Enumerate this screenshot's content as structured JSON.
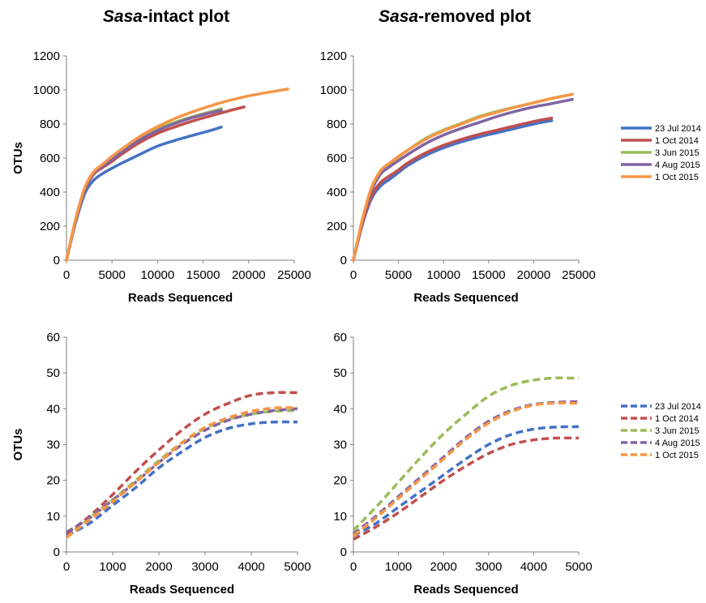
{
  "titles": {
    "left": {
      "italic": "Sasa",
      "rest": "-intact plot"
    },
    "right": {
      "italic": "Sasa",
      "rest": "-removed plot"
    }
  },
  "colors": {
    "23 Jul 2014": "#4472c4",
    "1 Oct 2014": "#c0504d",
    "3 Jun 2015": "#9bbb59",
    "4 Aug 2015": "#8064a2",
    "1 Oct 2015": "#f79646"
  },
  "chart_data": [
    {
      "id": "top-left",
      "type": "line",
      "line_style": "solid",
      "xlabel": "Reads Sequenced",
      "ylabel": "OTUs",
      "xlim": [
        0,
        25000
      ],
      "ylim": [
        0,
        1200
      ],
      "x_ticks": [
        "0",
        "5000",
        "10000",
        "15000",
        "20000",
        "25000"
      ],
      "y_ticks": [
        "0",
        "200",
        "400",
        "600",
        "800",
        "1000",
        "1200"
      ],
      "series": [
        {
          "name": "23 Jul 2014",
          "x": [
            0,
            1000,
            2000,
            3000,
            4000,
            5000,
            6000,
            8000,
            10000,
            12000,
            14000,
            16000,
            17000
          ],
          "y": [
            0,
            220,
            390,
            470,
            510,
            540,
            568,
            620,
            670,
            705,
            735,
            765,
            782
          ]
        },
        {
          "name": "1 Oct 2014",
          "x": [
            0,
            1000,
            2000,
            3000,
            4000,
            5000,
            6000,
            8000,
            10000,
            12000,
            14000,
            16000,
            18000,
            19500
          ],
          "y": [
            0,
            230,
            410,
            505,
            545,
            580,
            620,
            690,
            745,
            785,
            820,
            850,
            880,
            900
          ]
        },
        {
          "name": "3 Jun 2015",
          "x": [
            0,
            1000,
            2000,
            3000,
            4000,
            5000,
            6000,
            8000,
            10000,
            12000,
            14000,
            16000,
            17000
          ],
          "y": [
            0,
            235,
            420,
            515,
            560,
            600,
            640,
            715,
            770,
            812,
            845,
            875,
            890
          ]
        },
        {
          "name": "4 Aug 2015",
          "x": [
            0,
            1000,
            2000,
            3000,
            4000,
            5000,
            6000,
            8000,
            10000,
            12000,
            14000,
            16000,
            17000
          ],
          "y": [
            0,
            232,
            415,
            510,
            552,
            592,
            632,
            705,
            762,
            805,
            840,
            868,
            880
          ]
        },
        {
          "name": "1 Oct 2015",
          "x": [
            0,
            1000,
            2000,
            3000,
            4000,
            5000,
            6000,
            8000,
            10000,
            12000,
            14000,
            16000,
            18000,
            20000,
            22000,
            24300
          ],
          "y": [
            0,
            240,
            425,
            520,
            565,
            610,
            650,
            725,
            785,
            835,
            875,
            910,
            940,
            965,
            985,
            1005
          ]
        }
      ]
    },
    {
      "id": "top-right",
      "type": "line",
      "line_style": "solid",
      "xlabel": "Reads Sequenced",
      "ylabel": "",
      "xlim": [
        0,
        25000
      ],
      "ylim": [
        0,
        1200
      ],
      "x_ticks": [
        "0",
        "5000",
        "10000",
        "15000",
        "20000",
        "25000"
      ],
      "y_ticks": [
        "0",
        "200",
        "400",
        "600",
        "800",
        "1000",
        "1200"
      ],
      "series": [
        {
          "name": "23 Jul 2014",
          "x": [
            0,
            1000,
            2000,
            3000,
            4000,
            5000,
            6000,
            8000,
            10000,
            12000,
            14000,
            16000,
            18000,
            20000,
            22000
          ],
          "y": [
            0,
            210,
            360,
            435,
            475,
            515,
            555,
            615,
            660,
            695,
            725,
            750,
            775,
            800,
            820
          ]
        },
        {
          "name": "1 Oct 2014",
          "x": [
            0,
            1000,
            2000,
            3000,
            4000,
            5000,
            6000,
            8000,
            10000,
            12000,
            14000,
            16000,
            18000,
            20000,
            22000
          ],
          "y": [
            0,
            215,
            375,
            455,
            495,
            530,
            570,
            630,
            675,
            710,
            740,
            765,
            790,
            815,
            835
          ]
        },
        {
          "name": "3 Jun 2015",
          "x": [
            0,
            1000,
            2000,
            3000,
            4000,
            5000,
            6000,
            8000,
            10000,
            12000,
            14000,
            16000,
            18000,
            20000,
            22000,
            24300
          ],
          "y": [
            0,
            240,
            420,
            520,
            565,
            605,
            645,
            715,
            765,
            805,
            845,
            875,
            900,
            925,
            950,
            975
          ]
        },
        {
          "name": "4 Aug 2015",
          "x": [
            0,
            1000,
            2000,
            3000,
            4000,
            5000,
            6000,
            8000,
            10000,
            12000,
            14000,
            16000,
            18000,
            20000,
            22000,
            24300
          ],
          "y": [
            0,
            230,
            405,
            505,
            548,
            585,
            620,
            685,
            735,
            775,
            810,
            845,
            875,
            900,
            920,
            945
          ]
        },
        {
          "name": "1 Oct 2015",
          "x": [
            0,
            1000,
            2000,
            3000,
            4000,
            5000,
            6000,
            8000,
            10000,
            12000,
            14000,
            16000,
            18000,
            20000,
            22000,
            24300
          ],
          "y": [
            0,
            240,
            425,
            525,
            570,
            610,
            645,
            710,
            760,
            800,
            840,
            870,
            900,
            925,
            950,
            975
          ]
        }
      ]
    },
    {
      "id": "bottom-left",
      "type": "line",
      "line_style": "dashed",
      "xlabel": "Reads Sequenced",
      "ylabel": "OTUs",
      "xlim": [
        0,
        5000
      ],
      "ylim": [
        0,
        60
      ],
      "x_ticks": [
        "0",
        "1000",
        "2000",
        "3000",
        "4000",
        "5000"
      ],
      "y_ticks": [
        "0",
        "10",
        "20",
        "30",
        "40",
        "50",
        "60"
      ],
      "series": [
        {
          "name": "23 Jul 2014",
          "x": [
            0,
            500,
            1000,
            1500,
            2000,
            2500,
            3000,
            3500,
            4000,
            4500,
            5000
          ],
          "y": [
            4.5,
            8,
            13,
            18,
            23.5,
            28,
            32,
            34.5,
            35.8,
            36.3,
            36.3
          ]
        },
        {
          "name": "1 Oct 2014",
          "x": [
            0,
            500,
            1000,
            1500,
            2000,
            2500,
            3000,
            3500,
            4000,
            4500,
            5000
          ],
          "y": [
            5,
            10,
            16,
            22.5,
            28.5,
            34,
            38.5,
            41.5,
            43.8,
            44.5,
            44.5
          ]
        },
        {
          "name": "3 Jun 2015",
          "x": [
            0,
            500,
            1000,
            1500,
            2000,
            2500,
            3000,
            3500,
            4000,
            4500,
            5000
          ],
          "y": [
            4,
            9.5,
            14.5,
            20,
            25.5,
            30.5,
            34.5,
            37,
            38.5,
            39.3,
            39.5
          ]
        },
        {
          "name": "4 Aug 2015",
          "x": [
            0,
            500,
            1000,
            1500,
            2000,
            2500,
            3000,
            3500,
            4000,
            4500,
            5000
          ],
          "y": [
            5.5,
            9.5,
            14.5,
            19.5,
            25,
            30,
            34,
            36.8,
            38.5,
            39.5,
            40
          ]
        },
        {
          "name": "1 Oct 2015",
          "x": [
            0,
            500,
            1000,
            1500,
            2000,
            2500,
            3000,
            3500,
            4000,
            4500,
            5000
          ],
          "y": [
            4,
            9,
            14,
            19.5,
            25,
            30.5,
            34.8,
            37.5,
            39.3,
            40.2,
            40.3
          ]
        }
      ]
    },
    {
      "id": "bottom-right",
      "type": "line",
      "line_style": "dashed",
      "xlabel": "Reads Sequenced",
      "ylabel": "",
      "xlim": [
        0,
        5000
      ],
      "ylim": [
        0,
        60
      ],
      "x_ticks": [
        "0",
        "1000",
        "2000",
        "3000",
        "4000",
        "5000"
      ],
      "y_ticks": [
        "0",
        "10",
        "20",
        "30",
        "40",
        "50",
        "60"
      ],
      "series": [
        {
          "name": "23 Jul 2014",
          "x": [
            0,
            500,
            1000,
            1500,
            2000,
            2500,
            3000,
            3500,
            4000,
            4500,
            5000
          ],
          "y": [
            4.5,
            8,
            12.5,
            17,
            21.5,
            26,
            30,
            32.8,
            34.3,
            34.9,
            35
          ]
        },
        {
          "name": "1 Oct 2014",
          "x": [
            0,
            500,
            1000,
            1500,
            2000,
            2500,
            3000,
            3500,
            4000,
            4500,
            5000
          ],
          "y": [
            3.5,
            7,
            11,
            15.5,
            20,
            24,
            27.5,
            30,
            31.3,
            31.8,
            31.8
          ]
        },
        {
          "name": "3 Jun 2015",
          "x": [
            0,
            500,
            1000,
            1500,
            2000,
            2500,
            3000,
            3500,
            4000,
            4500,
            5000
          ],
          "y": [
            6,
            12.5,
            19.5,
            26.5,
            33,
            38.5,
            43.5,
            46.5,
            48,
            48.6,
            48.5
          ]
        },
        {
          "name": "4 Aug 2015",
          "x": [
            0,
            500,
            1000,
            1500,
            2000,
            2500,
            3000,
            3500,
            4000,
            4500,
            5000
          ],
          "y": [
            5,
            10,
            15.5,
            21,
            26.5,
            32,
            36.5,
            39.5,
            41.2,
            41.8,
            42
          ]
        },
        {
          "name": "1 Oct 2015",
          "x": [
            0,
            500,
            1000,
            1500,
            2000,
            2500,
            3000,
            3500,
            4000,
            4500,
            5000
          ],
          "y": [
            4.5,
            9.5,
            15,
            20.5,
            26,
            31.5,
            36,
            39.2,
            41,
            41.6,
            41.5
          ]
        }
      ]
    }
  ],
  "legends": [
    {
      "style": "solid",
      "entries": [
        "23 Jul 2014",
        "1 Oct 2014",
        "3 Jun 2015",
        "4 Aug 2015",
        "1 Oct 2015"
      ]
    },
    {
      "style": "dashed",
      "entries": [
        "23 Jul 2014",
        "1 Oct 2014",
        "3 Jun 2015",
        "4 Aug 2015",
        "1 Oct 2015"
      ]
    }
  ]
}
